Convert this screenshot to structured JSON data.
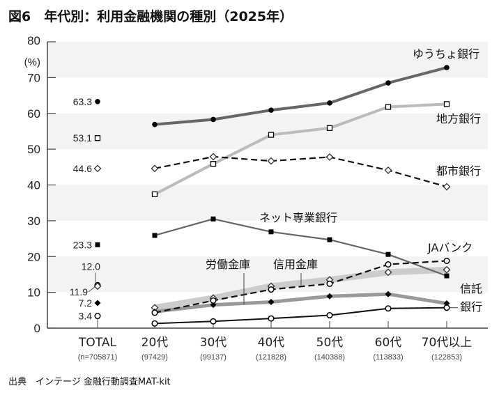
{
  "chart_data": {
    "type": "line",
    "title": "図6　年代別：利用金融機関の種別（2025年）",
    "ylabel": "(%)",
    "ylim": [
      0,
      80
    ],
    "yticks": [
      0,
      10,
      20,
      30,
      40,
      50,
      60,
      70,
      80
    ],
    "grid": "alternating horizontal bands",
    "total_label": "TOTAL",
    "total_n": "(n=705871)",
    "categories": [
      "20代",
      "30代",
      "40代",
      "50代",
      "60代",
      "70代以上"
    ],
    "sample_sizes": [
      "(97429)",
      "(99137)",
      "(121828)",
      "(140388)",
      "(113833)",
      "(122853)"
    ],
    "series": [
      {
        "name": "ゆうちょ銀行",
        "total": "63.3",
        "values": [
          56.9,
          58.3,
          60.9,
          62.9,
          68.5,
          72.8
        ],
        "color": "#666666",
        "marker": "filled-circle"
      },
      {
        "name": "地方銀行",
        "total": "53.1",
        "values": [
          37.4,
          45.9,
          54.0,
          55.9,
          61.8,
          62.6
        ],
        "color": "#bbbbbb",
        "marker": "open-square"
      },
      {
        "name": "都市銀行",
        "total": "44.6",
        "values": [
          44.6,
          47.9,
          46.7,
          47.8,
          44.1,
          39.5
        ],
        "color": "#111111",
        "marker": "open-diamond",
        "dashed": true
      },
      {
        "name": "ネット専業銀行",
        "total": "23.3",
        "values": [
          25.9,
          30.5,
          26.9,
          24.7,
          20.6,
          14.6
        ],
        "color": "#666666",
        "marker": "filled-square"
      },
      {
        "name": "JAバンク",
        "total": "12.0",
        "values": [
          4.3,
          7.7,
          10.8,
          12.4,
          17.8,
          18.8
        ],
        "color": "#111111",
        "marker": "open-circle",
        "dashed": true
      },
      {
        "name": "信用金庫",
        "total": "11.9",
        "values": [
          5.7,
          8.4,
          11.7,
          13.5,
          15.6,
          16.3
        ],
        "color": "#cccccc",
        "marker": "open-diamond"
      },
      {
        "name": "労働金庫",
        "total": "7.2",
        "values": [
          4.6,
          6.5,
          7.3,
          8.9,
          9.5,
          6.9
        ],
        "color": "#999999",
        "marker": "filled-diamond"
      },
      {
        "name": "信託銀行",
        "name_lines": [
          "信託",
          "銀行"
        ],
        "total": "3.4",
        "values": [
          1.3,
          1.9,
          2.7,
          3.6,
          5.5,
          5.7
        ],
        "color": "#111111",
        "marker": "open-circle"
      }
    ]
  },
  "source": "出典　インテージ 金融行動調査MAT-kit"
}
